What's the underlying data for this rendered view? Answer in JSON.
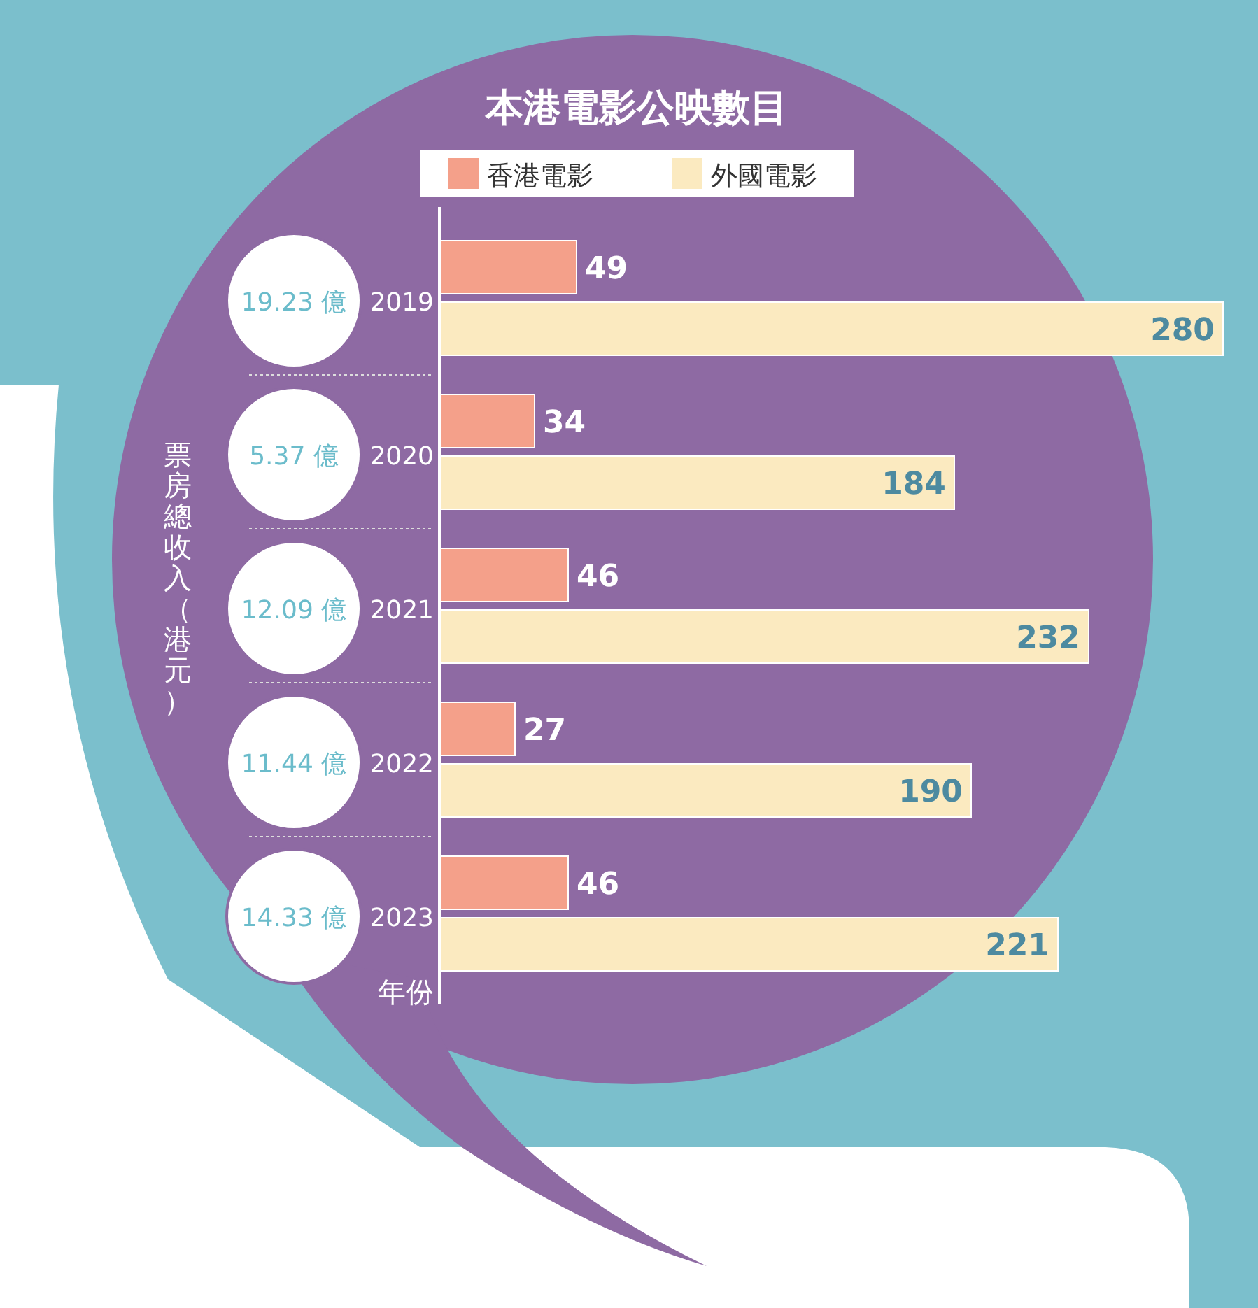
{
  "chart_data": {
    "type": "bar",
    "orientation": "horizontal",
    "title": "本港電影公映數目",
    "ylabel": "年份",
    "categories": [
      "2019",
      "2020",
      "2021",
      "2022",
      "2023"
    ],
    "series": [
      {
        "name": "香港電影",
        "color": "#f4a08a",
        "values": [
          49,
          34,
          46,
          27,
          46
        ]
      },
      {
        "name": "外國電影",
        "color": "#fbeac0",
        "values": [
          280,
          184,
          232,
          190,
          221
        ]
      }
    ],
    "data_labels": true,
    "legend": "top",
    "annotations": [
      "票房總收入（港元）",
      "19.23 億",
      "5.37 億",
      "12.09 億",
      "11.44 億",
      "14.33 億"
    ]
  }
}
